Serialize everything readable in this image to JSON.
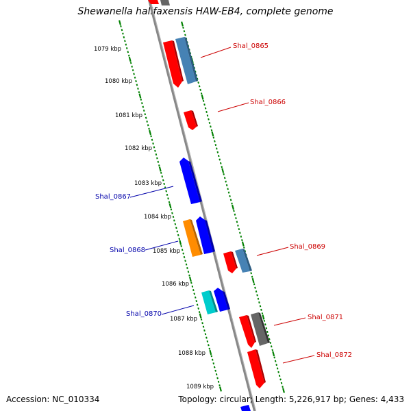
{
  "title": "Shewanella halifaxensis HAW-EB4, complete genome",
  "footer": {
    "accession": "Accession: NC_010334",
    "summary": "Topology: circular; Length: 5,226,917 bp; Genes: 4,433"
  },
  "kbp_labels": [
    "1079 kbp",
    "1080 kbp",
    "1081 kbp",
    "1082 kbp",
    "1083 kbp",
    "1084 kbp",
    "1085 kbp",
    "1086 kbp",
    "1087 kbp",
    "1088 kbp",
    "1089 kbp"
  ],
  "gene_labels": {
    "Shal_0865": "Shal_0865",
    "Shal_0866": "Shal_0866",
    "Shal_0867": "Shal_0867",
    "Shal_0868": "Shal_0868",
    "Shal_0869": "Shal_0869",
    "Shal_0870": "Shal_0870",
    "Shal_0871": "Shal_0871",
    "Shal_0872": "Shal_0872"
  },
  "colors": {
    "forward_label": "#cc0000",
    "reverse_label": "#0000aa",
    "gene_red": "#ff0000",
    "gene_blue": "#0000ff",
    "gene_steelblue": "#4682b4",
    "gene_orange": "#ff8c00",
    "gene_cyan": "#00cccc",
    "gene_gray": "#666666",
    "backbone": "#888888",
    "tick_green": "#008000"
  }
}
